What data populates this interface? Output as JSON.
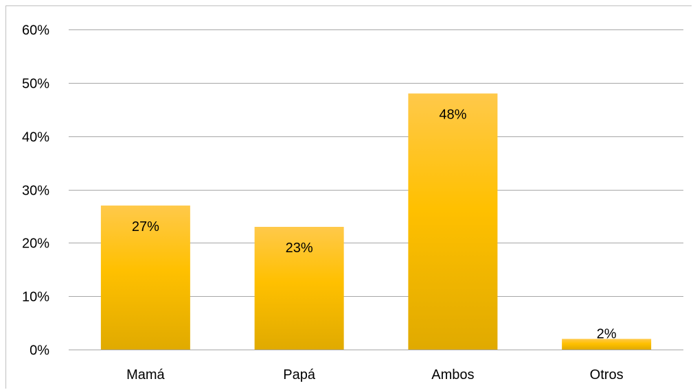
{
  "chart_data": {
    "type": "bar",
    "categories": [
      "Mamá",
      "Papá",
      "Ambos",
      "Otros"
    ],
    "values": [
      27,
      23,
      48,
      2
    ],
    "data_labels": [
      "27%",
      "23%",
      "48%",
      "2%"
    ],
    "title": "",
    "xlabel": "",
    "ylabel": "",
    "ylim": [
      0,
      60
    ],
    "yticks": [
      0,
      10,
      20,
      30,
      40,
      50,
      60
    ],
    "ytick_labels": [
      "0%",
      "10%",
      "20%",
      "30%",
      "40%",
      "50%",
      "60%"
    ],
    "grid": true,
    "legend": "none",
    "colors": {
      "bar_top": "#ffc94a",
      "bar_mid": "#ffc000",
      "bar_bottom": "#e0aa00",
      "gridline": "#a6a6a6"
    }
  }
}
